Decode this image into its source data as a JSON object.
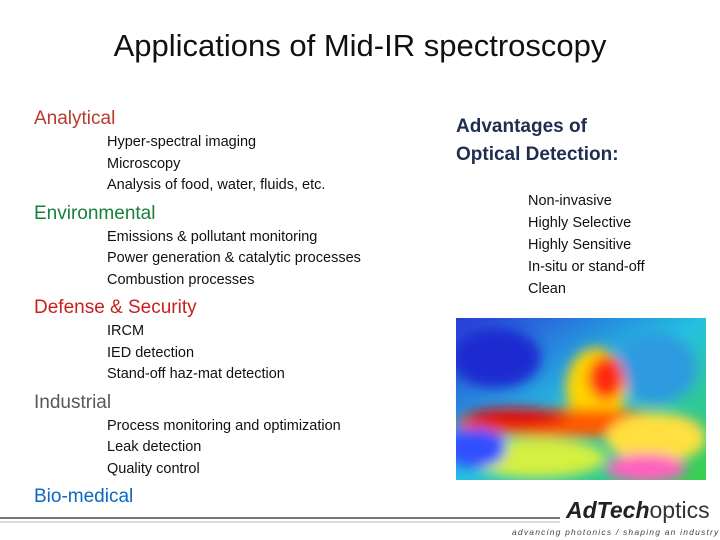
{
  "title": "Applications of Mid-IR spectroscopy",
  "sections": [
    {
      "heading": "Analytical",
      "items": [
        "Hyper-spectral imaging",
        "Microscopy",
        "Analysis of food, water, fluids, etc."
      ]
    },
    {
      "heading": "Environmental",
      "items": [
        "Emissions & pollutant monitoring",
        "Power generation & catalytic processes",
        "Combustion processes"
      ]
    },
    {
      "heading": "Defense & Security",
      "items": [
        "IRCM",
        "IED detection",
        "Stand-off haz-mat detection"
      ]
    },
    {
      "heading": "Industrial",
      "items": [
        "Process monitoring and optimization",
        "Leak detection",
        "Quality control"
      ]
    },
    {
      "heading": "Bio-medical",
      "items": []
    }
  ],
  "advantages": {
    "heading_line1": "Advantages of",
    "heading_line2": "Optical Detection:",
    "items": [
      "Non-invasive",
      "Highly Selective",
      "Highly Sensitive",
      "In-situ or stand-off",
      "Clean"
    ]
  },
  "logo": {
    "name": "AdTech",
    "suffix": "optics",
    "tagline": "advancing photonics / shaping an industry"
  }
}
